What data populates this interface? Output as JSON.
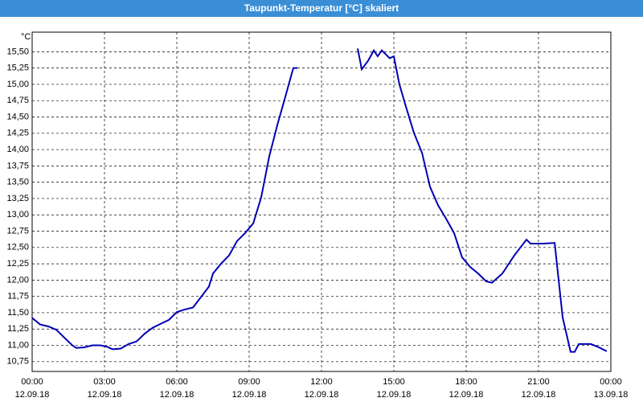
{
  "chart_data": {
    "type": "line",
    "title": "Taupunkt-Temperatur [°C] skaliert",
    "y_unit": "°C",
    "x": [
      0,
      0.33,
      0.67,
      1.0,
      1.33,
      1.67,
      1.83,
      2.17,
      2.5,
      2.83,
      3.1,
      3.33,
      3.67,
      4.0,
      4.33,
      4.67,
      5.0,
      5.33,
      5.67,
      6.0,
      6.33,
      6.67,
      7.0,
      7.33,
      7.5,
      7.83,
      8.17,
      8.5,
      8.83,
      9.17,
      9.5,
      9.83,
      10.17,
      10.5,
      10.83,
      11.0,
      12.25,
      13.5,
      13.67,
      13.93,
      14.17,
      14.33,
      14.5,
      14.83,
      15.0,
      15.23,
      15.5,
      15.83,
      16.17,
      16.5,
      16.83,
      17.17,
      17.5,
      17.83,
      18.17,
      18.5,
      18.83,
      19.07,
      19.5,
      20.0,
      20.5,
      20.67,
      21.17,
      21.67,
      22.0,
      22.33,
      22.5,
      22.67,
      23.17,
      23.5,
      23.83
    ],
    "series": [
      {
        "name": "Taupunkt-Temperatur",
        "color": "#0000b4",
        "values": [
          11.42,
          11.32,
          11.29,
          11.24,
          11.12,
          11.0,
          10.96,
          10.97,
          11.0,
          11.0,
          10.98,
          10.94,
          10.95,
          11.02,
          11.06,
          11.18,
          11.27,
          11.33,
          11.39,
          11.51,
          11.55,
          11.58,
          11.74,
          11.9,
          12.1,
          12.25,
          12.38,
          12.6,
          12.72,
          12.87,
          13.27,
          13.89,
          14.38,
          14.81,
          15.25,
          15.25,
          null,
          15.55,
          15.23,
          15.36,
          15.52,
          15.43,
          15.52,
          15.4,
          15.43,
          15.0,
          14.66,
          14.26,
          13.95,
          13.43,
          13.15,
          12.94,
          12.72,
          12.35,
          12.2,
          12.1,
          11.98,
          11.96,
          12.1,
          12.38,
          12.62,
          12.56,
          12.56,
          12.57,
          11.43,
          10.9,
          10.9,
          11.02,
          11.02,
          10.97,
          10.91
        ]
      }
    ],
    "xlim": [
      0,
      24
    ],
    "xticks": [
      {
        "value": 0,
        "label": "00:00"
      },
      {
        "value": 3,
        "label": "03:00"
      },
      {
        "value": 6,
        "label": "06:00"
      },
      {
        "value": 9,
        "label": "09:00"
      },
      {
        "value": 12,
        "label": "12:00"
      },
      {
        "value": 15,
        "label": "15:00"
      },
      {
        "value": 18,
        "label": "18:00"
      },
      {
        "value": 21,
        "label": "21:00"
      },
      {
        "value": 24,
        "label": "00:00"
      }
    ],
    "xtick_dates": [
      "12.09.18",
      "12.09.18",
      "12.09.18",
      "12.09.18",
      "12.09.18",
      "12.09.18",
      "12.09.18",
      "12.09.18",
      "13.09.18"
    ],
    "ylim": [
      10.6,
      15.8
    ],
    "yticks": [
      {
        "value": 10.75,
        "label": "10,75"
      },
      {
        "value": 11,
        "label": "11,00"
      },
      {
        "value": 11.25,
        "label": "11,25"
      },
      {
        "value": 11.5,
        "label": "11,50"
      },
      {
        "value": 11.75,
        "label": "11,75"
      },
      {
        "value": 12,
        "label": "12,00"
      },
      {
        "value": 12.25,
        "label": "12,25"
      },
      {
        "value": 12.5,
        "label": "12,50"
      },
      {
        "value": 12.75,
        "label": "12,75"
      },
      {
        "value": 13,
        "label": "13,00"
      },
      {
        "value": 13.25,
        "label": "13,25"
      },
      {
        "value": 13.5,
        "label": "13,50"
      },
      {
        "value": 13.75,
        "label": "13,75"
      },
      {
        "value": 14,
        "label": "14,00"
      },
      {
        "value": 14.25,
        "label": "14,25"
      },
      {
        "value": 14.5,
        "label": "14,50"
      },
      {
        "value": 14.75,
        "label": "14,75"
      },
      {
        "value": 15,
        "label": "15,00"
      },
      {
        "value": 15.25,
        "label": "15,25"
      },
      {
        "value": 15.5,
        "label": "15,50"
      }
    ],
    "grid": true
  }
}
